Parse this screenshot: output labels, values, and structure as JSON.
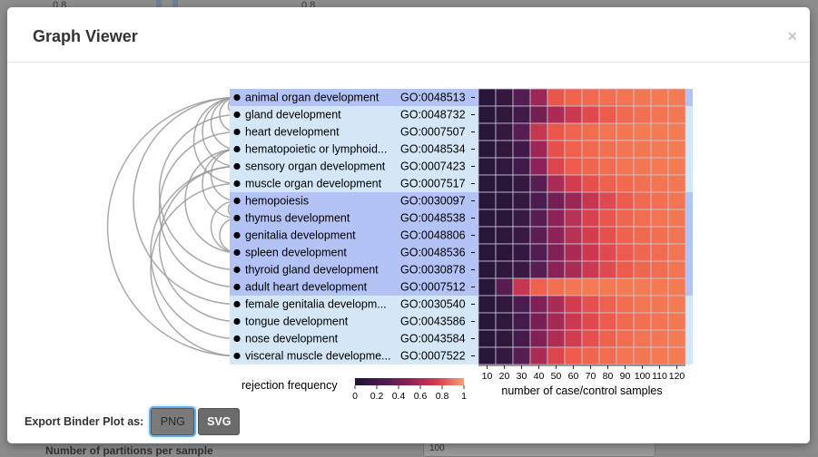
{
  "dialog": {
    "title": "Graph Viewer",
    "close_label": "×"
  },
  "backdrop": {
    "axis_top_left": "0.8",
    "axis_top_right": "0.8",
    "bottom_label": "Number of partitions per sample",
    "bottom_value": "100"
  },
  "chart_data": {
    "type": "heatmap",
    "title": "",
    "terms": [
      {
        "name": "animal organ development",
        "go_id": "GO:0048513",
        "group": 1
      },
      {
        "name": "gland development",
        "go_id": "GO:0048732",
        "group": 2
      },
      {
        "name": "heart development",
        "go_id": "GO:0007507",
        "group": 2
      },
      {
        "name": "hematopoietic or lymphoid...",
        "go_id": "GO:0048534",
        "group": 2
      },
      {
        "name": "sensory organ development",
        "go_id": "GO:0007423",
        "group": 2
      },
      {
        "name": "muscle organ development",
        "go_id": "GO:0007517",
        "group": 2
      },
      {
        "name": "hemopoiesis",
        "go_id": "GO:0030097",
        "group": 1
      },
      {
        "name": "thymus development",
        "go_id": "GO:0048538",
        "group": 1
      },
      {
        "name": "genitalia development",
        "go_id": "GO:0048806",
        "group": 1
      },
      {
        "name": "spleen development",
        "go_id": "GO:0048536",
        "group": 1
      },
      {
        "name": "thyroid gland development",
        "go_id": "GO:0030878",
        "group": 1
      },
      {
        "name": "adult heart development",
        "go_id": "GO:0007512",
        "group": 1
      },
      {
        "name": "female genitalia developm...",
        "go_id": "GO:0030540",
        "group": 2
      },
      {
        "name": "tongue development",
        "go_id": "GO:0043586",
        "group": 2
      },
      {
        "name": "nose development",
        "go_id": "GO:0043584",
        "group": 2
      },
      {
        "name": "visceral muscle developme...",
        "go_id": "GO:0007522",
        "group": 2
      }
    ],
    "x_values": [
      10,
      20,
      30,
      40,
      50,
      60,
      70,
      80,
      90,
      100,
      110,
      120
    ],
    "xlabel": "number of case/control samples",
    "values": [
      [
        0.05,
        0.12,
        0.28,
        0.55,
        0.88,
        0.93,
        0.95,
        0.97,
        0.98,
        0.99,
        1.0,
        1.0
      ],
      [
        0.05,
        0.1,
        0.2,
        0.4,
        0.6,
        0.72,
        0.82,
        0.9,
        0.95,
        0.97,
        0.98,
        0.99
      ],
      [
        0.05,
        0.12,
        0.3,
        0.7,
        0.88,
        0.93,
        0.96,
        0.98,
        0.99,
        1.0,
        1.0,
        1.0
      ],
      [
        0.05,
        0.1,
        0.2,
        0.55,
        0.85,
        0.92,
        0.95,
        0.97,
        0.98,
        0.99,
        1.0,
        1.0
      ],
      [
        0.05,
        0.1,
        0.2,
        0.5,
        0.8,
        0.9,
        0.94,
        0.96,
        0.98,
        0.99,
        1.0,
        1.0
      ],
      [
        0.05,
        0.07,
        0.12,
        0.3,
        0.6,
        0.75,
        0.85,
        0.92,
        0.95,
        0.97,
        0.98,
        0.99
      ],
      [
        0.05,
        0.07,
        0.12,
        0.25,
        0.4,
        0.55,
        0.7,
        0.82,
        0.9,
        0.95,
        0.97,
        0.98
      ],
      [
        0.05,
        0.07,
        0.15,
        0.3,
        0.5,
        0.65,
        0.78,
        0.88,
        0.94,
        0.96,
        0.98,
        0.99
      ],
      [
        0.05,
        0.08,
        0.15,
        0.32,
        0.5,
        0.65,
        0.76,
        0.85,
        0.92,
        0.95,
        0.97,
        0.98
      ],
      [
        0.05,
        0.07,
        0.13,
        0.28,
        0.45,
        0.6,
        0.72,
        0.82,
        0.9,
        0.94,
        0.96,
        0.98
      ],
      [
        0.05,
        0.08,
        0.15,
        0.3,
        0.48,
        0.6,
        0.72,
        0.82,
        0.9,
        0.94,
        0.96,
        0.98
      ],
      [
        0.05,
        0.3,
        0.7,
        0.92,
        0.97,
        0.99,
        1.0,
        1.0,
        1.0,
        1.0,
        1.0,
        1.0
      ],
      [
        0.05,
        0.1,
        0.25,
        0.45,
        0.6,
        0.75,
        0.85,
        0.92,
        0.96,
        0.98,
        0.99,
        1.0
      ],
      [
        0.05,
        0.1,
        0.22,
        0.42,
        0.58,
        0.72,
        0.82,
        0.9,
        0.95,
        0.97,
        0.98,
        0.99
      ],
      [
        0.05,
        0.1,
        0.22,
        0.45,
        0.62,
        0.75,
        0.85,
        0.92,
        0.96,
        0.98,
        0.99,
        1.0
      ],
      [
        0.05,
        0.12,
        0.3,
        0.6,
        0.8,
        0.9,
        0.94,
        0.96,
        0.98,
        0.99,
        1.0,
        1.0
      ]
    ],
    "edges": [
      [
        0,
        1
      ],
      [
        0,
        2
      ],
      [
        0,
        3
      ],
      [
        0,
        4
      ],
      [
        0,
        5
      ],
      [
        0,
        12
      ],
      [
        0,
        15
      ],
      [
        3,
        6
      ],
      [
        3,
        7
      ],
      [
        3,
        9
      ],
      [
        1,
        10
      ],
      [
        2,
        11
      ],
      [
        4,
        13
      ],
      [
        4,
        14
      ],
      [
        5,
        15
      ],
      [
        12,
        8
      ],
      [
        6,
        9
      ],
      [
        7,
        9
      ],
      [
        6,
        7
      ]
    ],
    "colorbar": {
      "label": "rejection frequency",
      "ticks": [
        "0",
        "0.2",
        "0.4",
        "0.6",
        "0.8",
        "1"
      ],
      "range": [
        0,
        1
      ]
    },
    "colors": {
      "group1_band": "#b3c3f5",
      "group2_band": "#d3e7f7",
      "low": "#1f1433",
      "high": "#f47a54"
    }
  },
  "export": {
    "label": "Export Binder Plot as:",
    "png_label": "PNG",
    "svg_label": "SVG"
  }
}
